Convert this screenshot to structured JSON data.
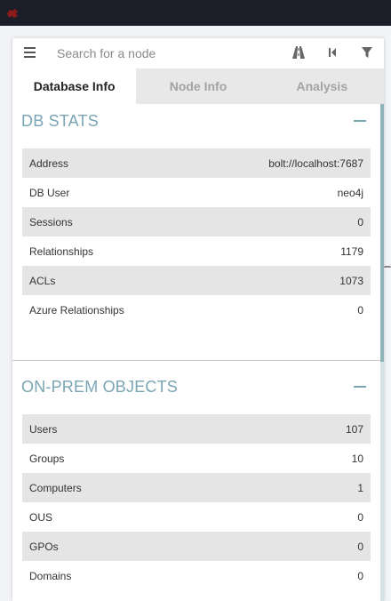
{
  "search": {
    "placeholder": "Search for a node"
  },
  "tabs": [
    {
      "label": "Database Info",
      "active": true
    },
    {
      "label": "Node Info",
      "active": false
    },
    {
      "label": "Analysis",
      "active": false
    }
  ],
  "toolbar": {
    "menu_icon": "hamburger-icon",
    "path_icon": "road-icon",
    "back_icon": "step-backward-icon",
    "filter_icon": "filter-icon"
  },
  "db_stats": {
    "title": "DB STATS",
    "rows": [
      {
        "label": "Address",
        "value": "bolt://localhost:7687"
      },
      {
        "label": "DB User",
        "value": "neo4j"
      },
      {
        "label": "Sessions",
        "value": "0"
      },
      {
        "label": "Relationships",
        "value": "1179"
      },
      {
        "label": "ACLs",
        "value": "1073"
      },
      {
        "label": "Azure Relationships",
        "value": "0"
      }
    ]
  },
  "onprem": {
    "title": "ON-PREM OBJECTS",
    "rows": [
      {
        "label": "Users",
        "value": "107"
      },
      {
        "label": "Groups",
        "value": "10"
      },
      {
        "label": "Computers",
        "value": "1"
      },
      {
        "label": "OUS",
        "value": "0"
      },
      {
        "label": "GPOs",
        "value": "0"
      },
      {
        "label": "Domains",
        "value": "0"
      }
    ]
  },
  "colors": {
    "accent": "#7aa5b4",
    "topbar": "#1b1d28",
    "row_stripe": "#e5e5e5",
    "logo": "#8b1a1a"
  }
}
